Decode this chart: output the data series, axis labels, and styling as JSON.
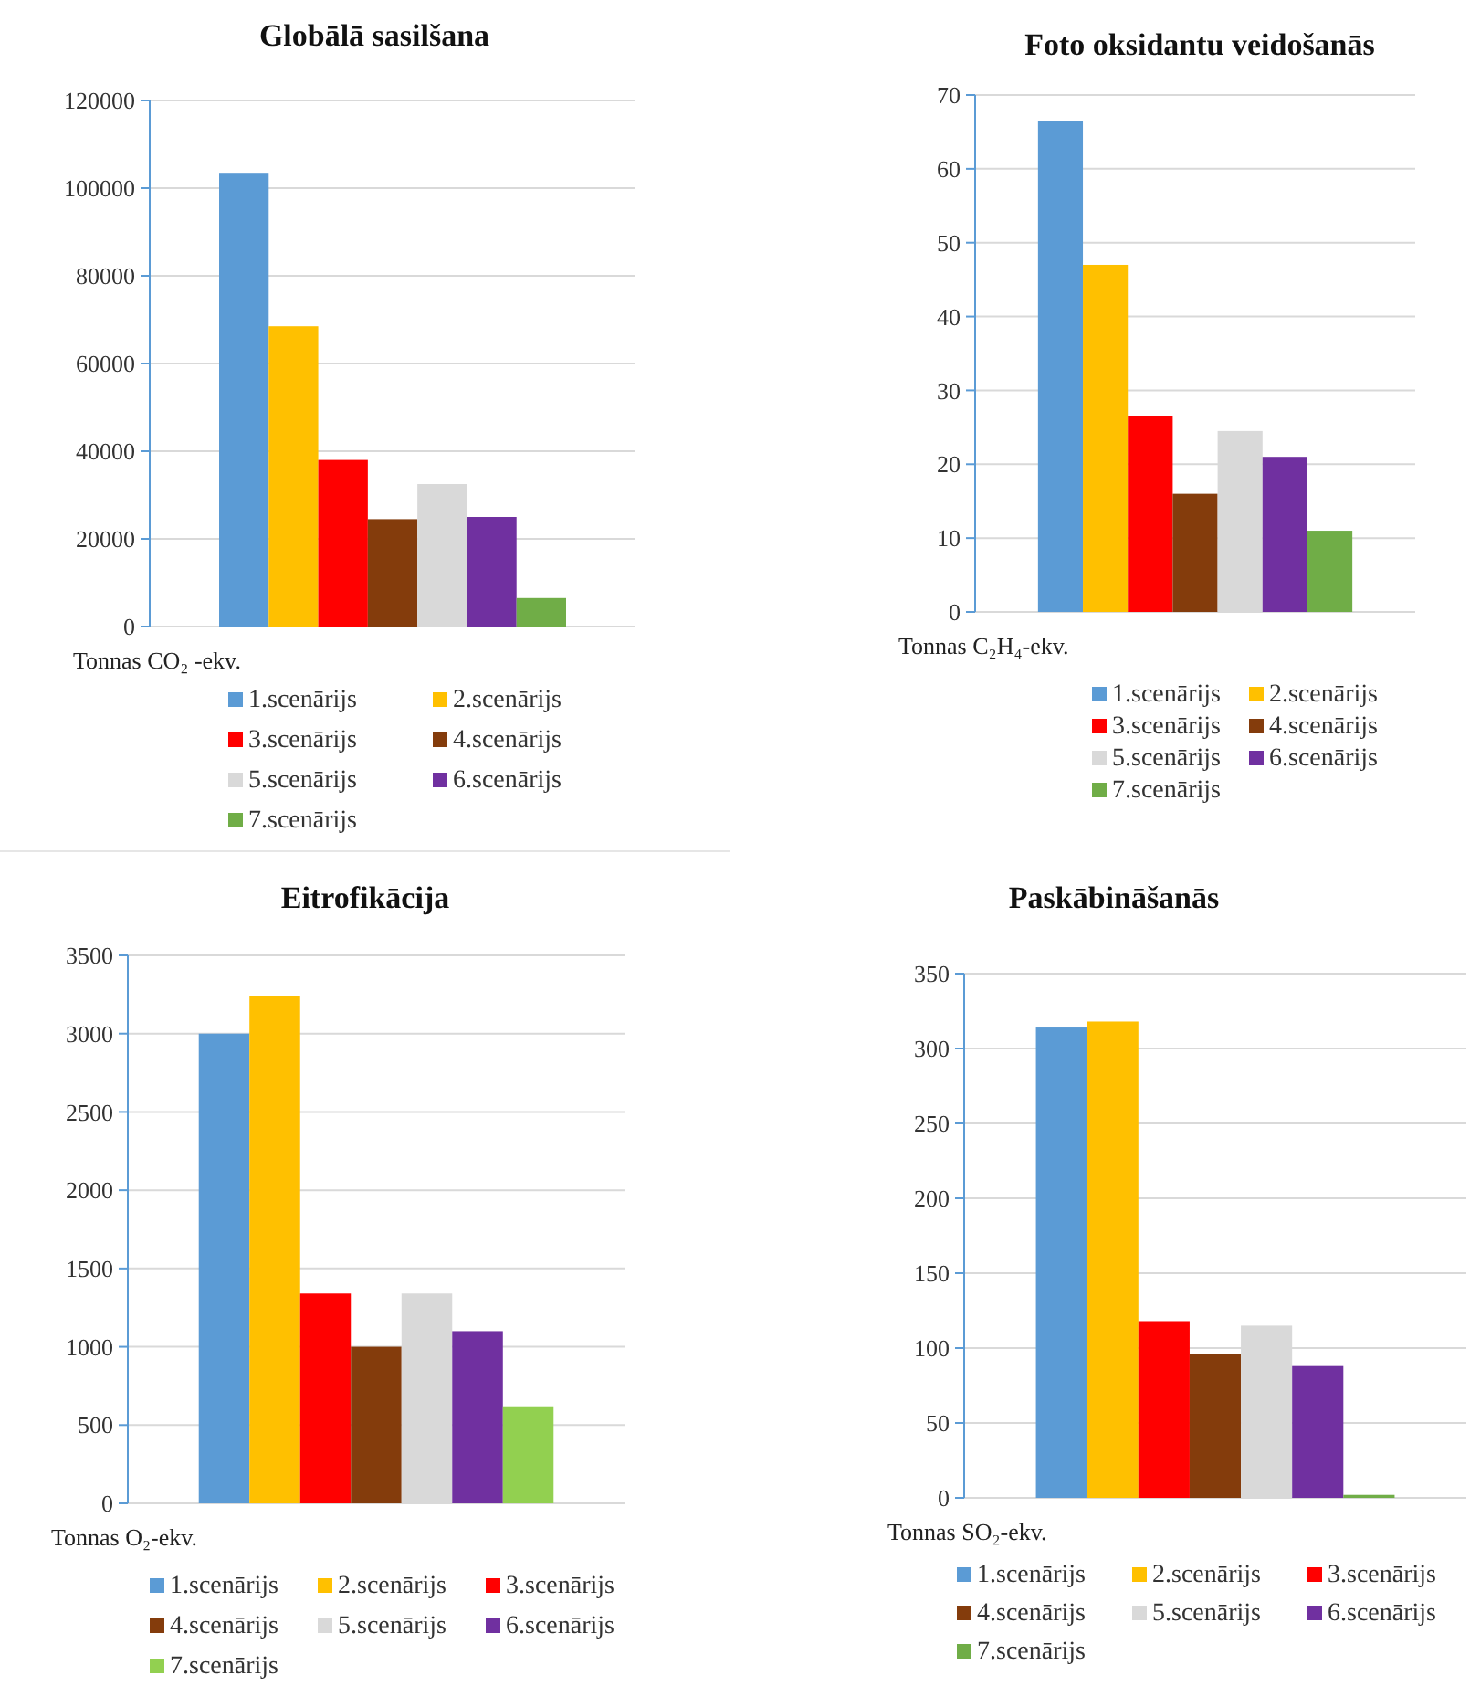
{
  "chart_data": [
    {
      "type": "bar",
      "title": "Globālā sasilšana",
      "ylabel": "Tonnas CO₂ -ekv.",
      "categories": [
        null
      ],
      "ylim": [
        0,
        120000
      ],
      "yticks": [
        0,
        20000,
        40000,
        60000,
        80000,
        100000,
        120000
      ],
      "grid": "y",
      "legend": "bottom",
      "series": [
        {
          "name": "1.scenārijs",
          "color": "#5b9bd5",
          "values": [
            103500
          ]
        },
        {
          "name": "2.scenārijs",
          "color": "#ffc000",
          "values": [
            68500
          ]
        },
        {
          "name": "3.scenārijs",
          "color": "#ff0000",
          "values": [
            38000
          ]
        },
        {
          "name": "4.scenārijs",
          "color": "#843c0c",
          "values": [
            24500
          ]
        },
        {
          "name": "5.scenārijs",
          "color": "#d9d9d9",
          "values": [
            32500
          ]
        },
        {
          "name": "6.scenārijs",
          "color": "#7030a0",
          "values": [
            25000
          ]
        },
        {
          "name": "7.scenārijs",
          "color": "#70ad47",
          "values": [
            6500
          ]
        }
      ]
    },
    {
      "type": "bar",
      "title": "Foto oksidantu veidošanās",
      "ylabel": "Tonnas C₂H₄-ekv.",
      "categories": [
        null
      ],
      "ylim": [
        0,
        70
      ],
      "yticks": [
        0,
        10,
        20,
        30,
        40,
        50,
        60,
        70
      ],
      "grid": "y",
      "legend": "bottom",
      "series": [
        {
          "name": "1.scenārijs",
          "color": "#5b9bd5",
          "values": [
            66.5
          ]
        },
        {
          "name": "2.scenārijs",
          "color": "#ffc000",
          "values": [
            47
          ]
        },
        {
          "name": "3.scenārijs",
          "color": "#ff0000",
          "values": [
            26.5
          ]
        },
        {
          "name": "4.scenārijs",
          "color": "#843c0c",
          "values": [
            16
          ]
        },
        {
          "name": "5.scenārijs",
          "color": "#d9d9d9",
          "values": [
            24.5
          ]
        },
        {
          "name": "6.scenārijs",
          "color": "#7030a0",
          "values": [
            21
          ]
        },
        {
          "name": "7.scenārijs",
          "color": "#70ad47",
          "values": [
            11
          ]
        }
      ]
    },
    {
      "type": "bar",
      "title": "Eitrofikācija",
      "ylabel": "Tonnas O₂-ekv.",
      "categories": [
        null
      ],
      "ylim": [
        0,
        3500
      ],
      "yticks": [
        0,
        500,
        1000,
        1500,
        2000,
        2500,
        3000,
        3500
      ],
      "grid": "y",
      "legend": "bottom",
      "series": [
        {
          "name": "1.scenārijs",
          "color": "#5b9bd5",
          "values": [
            3000
          ]
        },
        {
          "name": "2.scenārijs",
          "color": "#ffc000",
          "values": [
            3240
          ]
        },
        {
          "name": "3.scenārijs",
          "color": "#ff0000",
          "values": [
            1340
          ]
        },
        {
          "name": "4.scenārijs",
          "color": "#843c0c",
          "values": [
            1000
          ]
        },
        {
          "name": "5.scenārijs",
          "color": "#d9d9d9",
          "values": [
            1340
          ]
        },
        {
          "name": "6.scenārijs",
          "color": "#7030a0",
          "values": [
            1100
          ]
        },
        {
          "name": "7.scenārijs",
          "color": "#92d050",
          "values": [
            620
          ]
        }
      ]
    },
    {
      "type": "bar",
      "title": "Paskābināšanās",
      "ylabel": "Tonnas SO₂-ekv.",
      "categories": [
        null
      ],
      "ylim": [
        0,
        350
      ],
      "yticks": [
        0,
        50,
        100,
        150,
        200,
        250,
        300,
        350
      ],
      "grid": "y",
      "legend": "bottom",
      "series": [
        {
          "name": "1.scenārijs",
          "color": "#5b9bd5",
          "values": [
            314
          ]
        },
        {
          "name": "2.scenārijs",
          "color": "#ffc000",
          "values": [
            318
          ]
        },
        {
          "name": "3.scenārijs",
          "color": "#ff0000",
          "values": [
            118
          ]
        },
        {
          "name": "4.scenārijs",
          "color": "#843c0c",
          "values": [
            96
          ]
        },
        {
          "name": "5.scenārijs",
          "color": "#d9d9d9",
          "values": [
            115
          ]
        },
        {
          "name": "6.scenārijs",
          "color": "#7030a0",
          "values": [
            88
          ]
        },
        {
          "name": "7.scenārijs",
          "color": "#70ad47",
          "values": [
            2
          ]
        }
      ]
    }
  ]
}
